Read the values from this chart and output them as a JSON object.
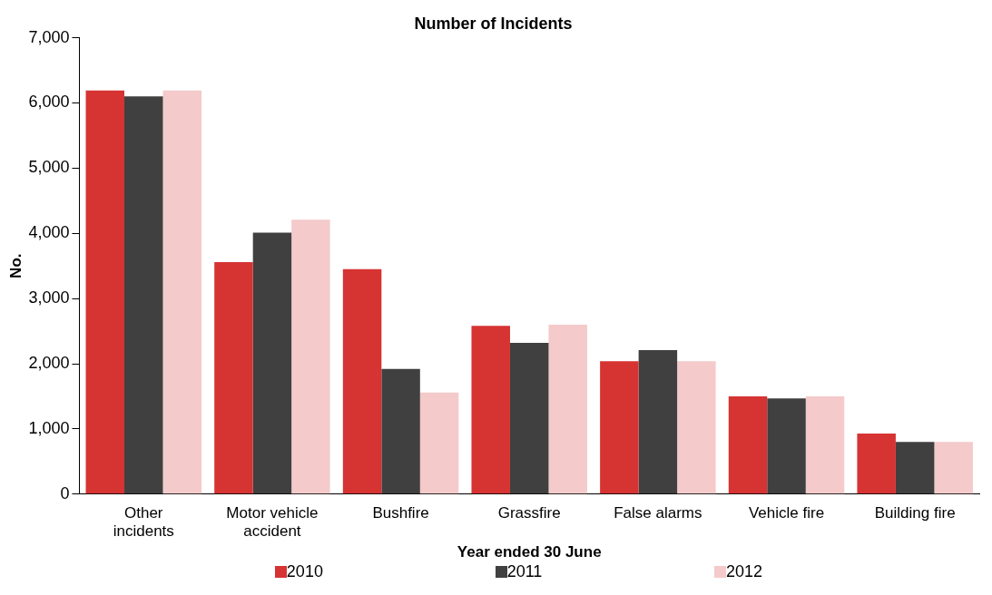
{
  "chart_data": {
    "type": "bar",
    "title": "Number of Incidents",
    "xlabel": "Year ended 30 June",
    "ylabel": "No.",
    "categories": [
      "Other incidents",
      "Motor vehicle accident",
      "Bushfire",
      "Grassfire",
      "False alarms",
      "Vehicle fire",
      "Building fire"
    ],
    "series": [
      {
        "name": "2010",
        "color": "#d63333",
        "values": [
          6190,
          3560,
          3450,
          2580,
          2040,
          1500,
          930
        ]
      },
      {
        "name": "2011",
        "color": "#404040",
        "values": [
          6100,
          4010,
          1920,
          2320,
          2210,
          1470,
          800
        ]
      },
      {
        "name": "2012",
        "color": "#f4caca",
        "values": [
          6190,
          4210,
          1560,
          2600,
          2040,
          1500,
          800
        ]
      }
    ],
    "ylim": [
      0,
      7000
    ],
    "yticks": [
      0,
      {
        "value": 1000,
        "label": "1,000"
      },
      {
        "value": 2000,
        "label": "2,000"
      },
      {
        "value": 3000,
        "label": "3,000"
      },
      {
        "value": 4000,
        "label": "4,000"
      },
      {
        "value": 5000,
        "label": "5,000"
      },
      {
        "value": 6000,
        "label": "6,000"
      },
      {
        "value": 7000,
        "label": "7,000"
      }
    ],
    "grid": false,
    "legend": "bottom"
  }
}
